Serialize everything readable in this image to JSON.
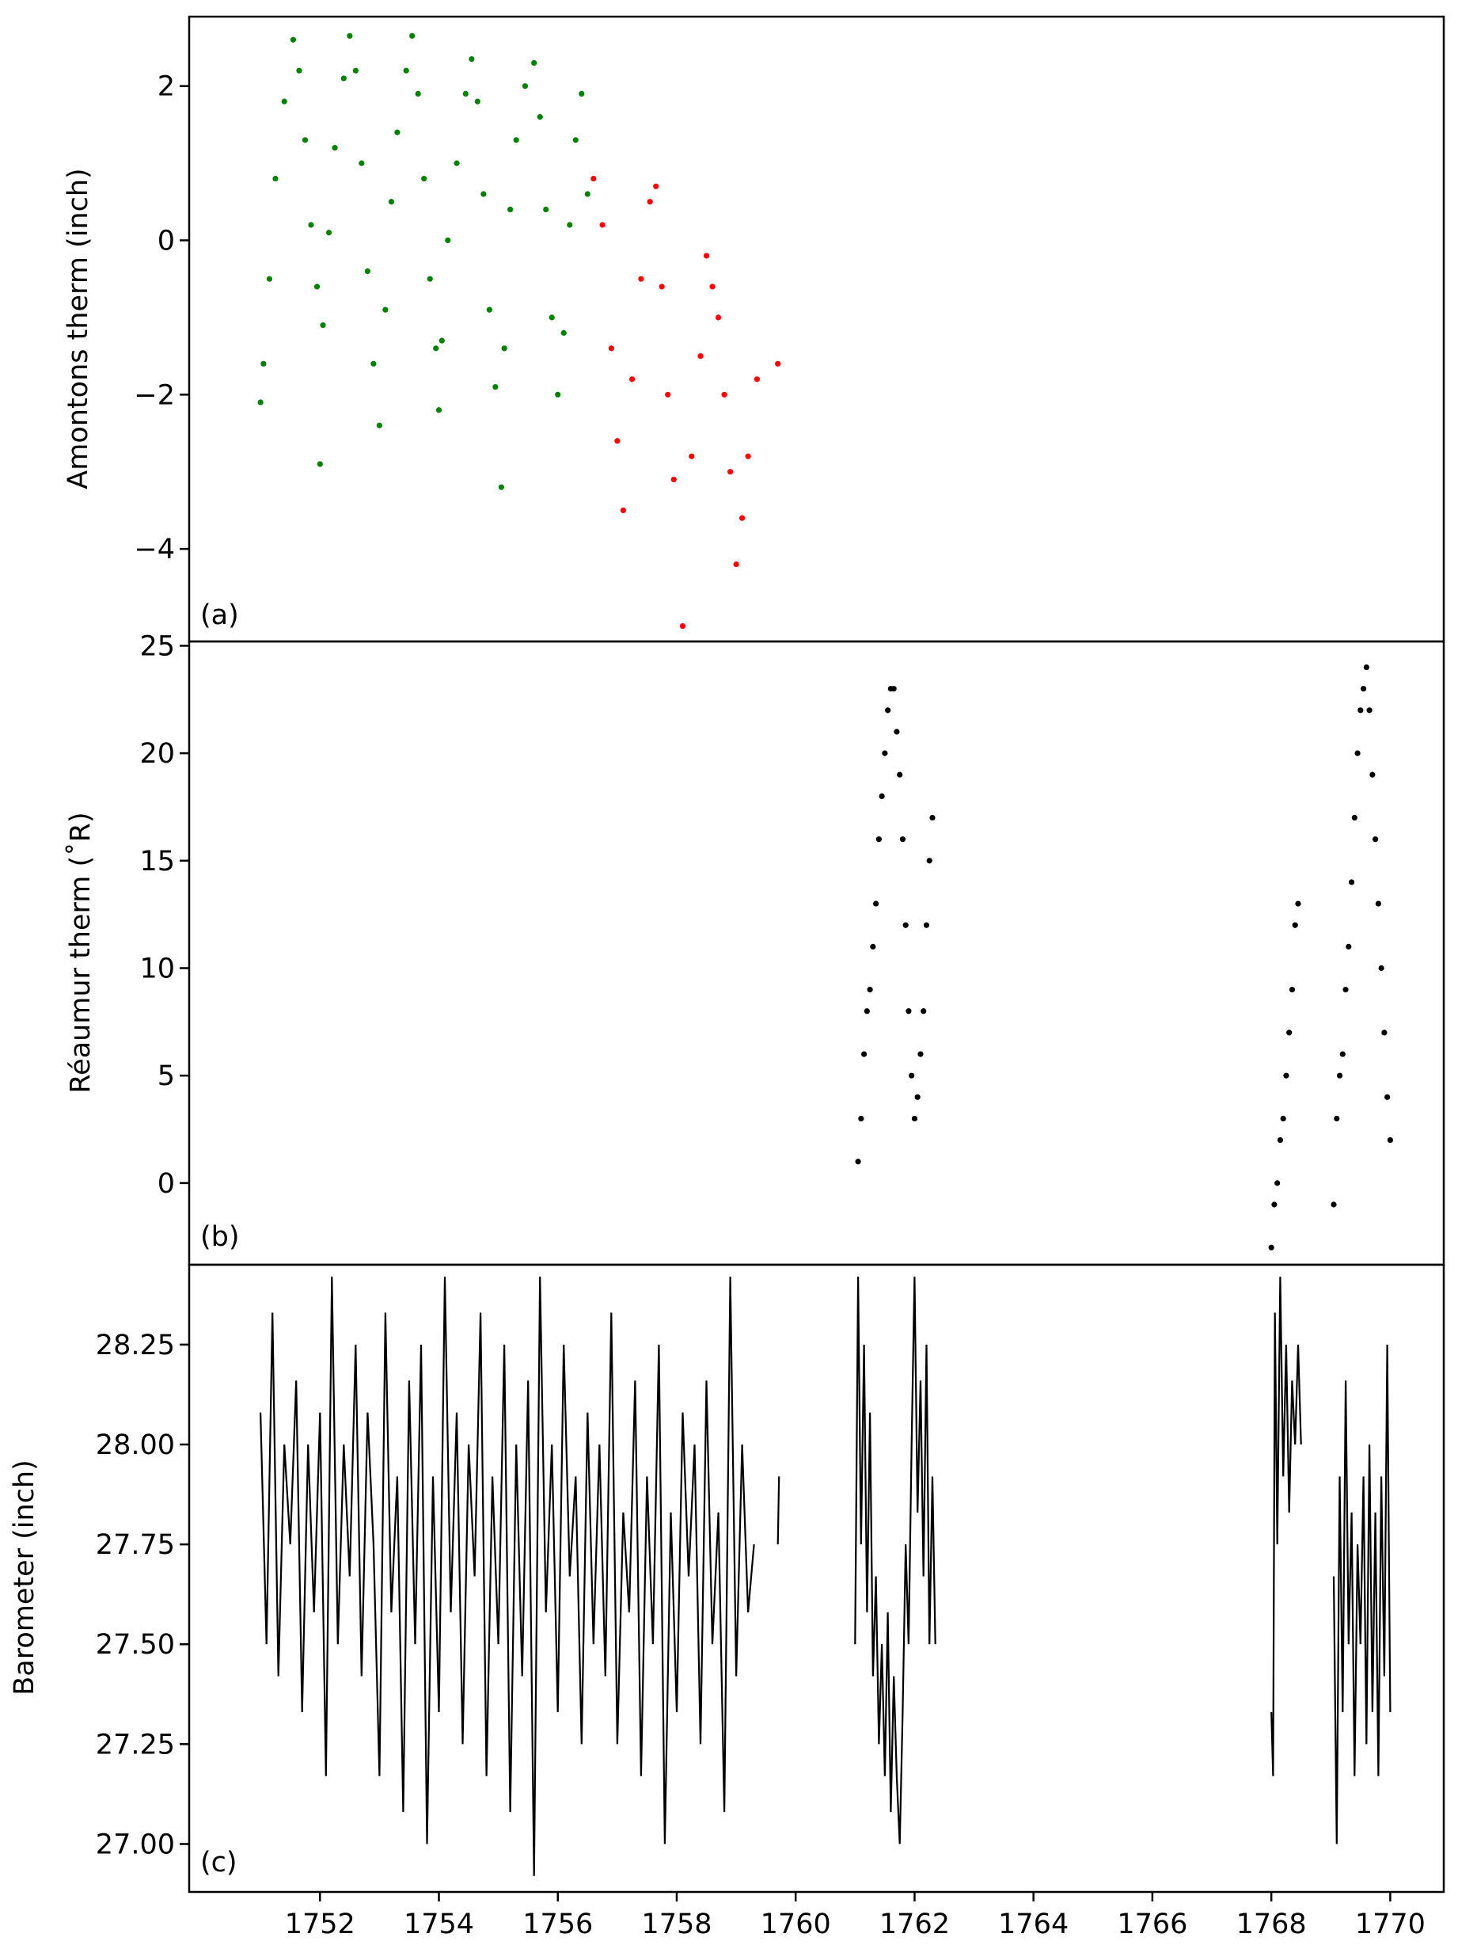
{
  "chart_data": [
    {
      "type": "scatter",
      "panel_label": "(a)",
      "ylabel": "Amontons therm (inch)",
      "ylim": [
        -5.2,
        2.9
      ],
      "yticks": [
        -4,
        -2,
        0,
        2
      ],
      "ytick_labels": [
        "−4",
        "−2",
        "0",
        "2"
      ],
      "colors": {
        "early": "#008000",
        "late": "#ff0000"
      },
      "series": [
        {
          "color_key": "early",
          "x": [
            1751.0,
            1751.05,
            1751.15,
            1751.25,
            1751.4,
            1751.55,
            1751.65,
            1751.75,
            1751.85,
            1751.95,
            1752.0,
            1752.05,
            1752.15,
            1752.25,
            1752.4,
            1752.5,
            1752.6,
            1752.7,
            1752.8,
            1752.9,
            1753.0,
            1753.1,
            1753.2,
            1753.3,
            1753.45,
            1753.55,
            1753.65,
            1753.75,
            1753.85,
            1753.95,
            1754.0,
            1754.05,
            1754.15,
            1754.3,
            1754.45,
            1754.55,
            1754.65,
            1754.75,
            1754.85,
            1754.95,
            1755.05,
            1755.1,
            1755.2,
            1755.3,
            1755.45,
            1755.6,
            1755.7,
            1755.8,
            1755.9,
            1756.0,
            1756.1,
            1756.2,
            1756.3,
            1756.4,
            1756.5
          ],
          "y": [
            -2.1,
            -1.6,
            -0.5,
            0.8,
            1.8,
            2.6,
            2.2,
            1.3,
            0.2,
            -0.6,
            -2.9,
            -1.1,
            0.1,
            1.2,
            2.1,
            2.65,
            2.2,
            1.0,
            -0.4,
            -1.6,
            -2.4,
            -0.9,
            0.5,
            1.4,
            2.2,
            2.65,
            1.9,
            0.8,
            -0.5,
            -1.4,
            -2.2,
            -1.3,
            0.0,
            1.0,
            1.9,
            2.35,
            1.8,
            0.6,
            -0.9,
            -1.9,
            -3.2,
            -1.4,
            0.4,
            1.3,
            2.0,
            2.3,
            1.6,
            0.4,
            -1.0,
            -2.0,
            -1.2,
            0.2,
            1.3,
            1.9,
            0.6
          ]
        },
        {
          "color_key": "late",
          "x": [
            1756.6,
            1756.75,
            1756.9,
            1757.0,
            1757.1,
            1757.25,
            1757.4,
            1757.55,
            1757.65,
            1757.75,
            1757.85,
            1757.95,
            1758.1,
            1758.25,
            1758.4,
            1758.5,
            1758.6,
            1758.7,
            1758.8,
            1758.9,
            1759.0,
            1759.1,
            1759.2,
            1759.35,
            1759.7
          ],
          "y": [
            0.8,
            0.2,
            -1.4,
            -2.6,
            -3.5,
            -1.8,
            -0.5,
            0.5,
            0.7,
            -0.6,
            -2.0,
            -3.1,
            -5.0,
            -2.8,
            -1.5,
            -0.2,
            -0.6,
            -1.0,
            -2.0,
            -3.0,
            -4.2,
            -3.6,
            -2.8,
            -1.8,
            -1.6
          ]
        }
      ]
    },
    {
      "type": "scatter",
      "panel_label": "(b)",
      "ylabel": "Réaumur therm (˚R)",
      "ylim": [
        -3.8,
        25.2
      ],
      "yticks": [
        0,
        5,
        10,
        15,
        20,
        25
      ],
      "ytick_labels": [
        "0",
        "5",
        "10",
        "15",
        "20",
        "25"
      ],
      "color": "#000000",
      "series": [
        {
          "x": [
            1761.05,
            1761.1,
            1761.15,
            1761.2,
            1761.25,
            1761.3,
            1761.35,
            1761.4,
            1761.45,
            1761.5,
            1761.55,
            1761.6,
            1761.65,
            1761.7,
            1761.75,
            1761.8,
            1761.85,
            1761.9,
            1761.95,
            1762.0,
            1762.05,
            1762.1,
            1762.15,
            1762.2,
            1762.25,
            1762.3
          ],
          "y": [
            1,
            3,
            6,
            8,
            9,
            11,
            13,
            16,
            18,
            20,
            22,
            23,
            23,
            21,
            19,
            16,
            12,
            8,
            5,
            3,
            4,
            6,
            8,
            12,
            15,
            17
          ]
        },
        {
          "x": [
            1768.0,
            1768.05,
            1768.1,
            1768.15,
            1768.2,
            1768.25,
            1768.3,
            1768.35,
            1768.4,
            1768.45,
            1769.05,
            1769.1,
            1769.15,
            1769.2,
            1769.25,
            1769.3,
            1769.35,
            1769.4,
            1769.45,
            1769.5,
            1769.55,
            1769.6,
            1769.65,
            1769.7,
            1769.75,
            1769.8,
            1769.85,
            1769.9,
            1769.95,
            1770.0
          ],
          "y": [
            -3,
            -1,
            0,
            2,
            3,
            5,
            7,
            9,
            12,
            13,
            -1,
            3,
            5,
            6,
            9,
            11,
            14,
            17,
            20,
            22,
            23,
            24,
            22,
            19,
            16,
            13,
            10,
            7,
            4,
            2
          ]
        }
      ]
    },
    {
      "type": "line",
      "panel_label": "(c)",
      "ylabel": "Barometer (inch)",
      "ylim": [
        26.88,
        28.45
      ],
      "yticks": [
        27.0,
        27.25,
        27.5,
        27.75,
        28.0,
        28.25
      ],
      "ytick_labels": [
        "27.00",
        "27.25",
        "27.50",
        "27.75",
        "28.00",
        "28.25"
      ],
      "color": "#000000",
      "segments": [
        {
          "x": [
            1751.0,
            1751.1,
            1751.2,
            1751.3,
            1751.4,
            1751.5,
            1751.6,
            1751.7,
            1751.8,
            1751.9,
            1752.0,
            1752.1,
            1752.2,
            1752.3,
            1752.4,
            1752.5,
            1752.6,
            1752.7,
            1752.8,
            1752.9,
            1753.0,
            1753.1,
            1753.2,
            1753.3,
            1753.4,
            1753.5,
            1753.6,
            1753.7,
            1753.8,
            1753.9,
            1754.0,
            1754.1,
            1754.2,
            1754.3,
            1754.4,
            1754.5,
            1754.6,
            1754.7,
            1754.8,
            1754.9,
            1755.0,
            1755.1,
            1755.2,
            1755.3,
            1755.4,
            1755.5,
            1755.6,
            1755.7,
            1755.8,
            1755.9,
            1756.0,
            1756.1,
            1756.2,
            1756.3,
            1756.4,
            1756.5,
            1756.6,
            1756.7,
            1756.8,
            1756.9,
            1757.0,
            1757.1,
            1757.2,
            1757.3,
            1757.4,
            1757.5,
            1757.6,
            1757.7,
            1757.8,
            1757.9,
            1758.0,
            1758.1,
            1758.2,
            1758.3,
            1758.4,
            1758.5,
            1758.6,
            1758.7,
            1758.8,
            1758.9,
            1759.0,
            1759.1,
            1759.2,
            1759.3
          ],
          "y": [
            28.08,
            27.5,
            28.33,
            27.42,
            28.0,
            27.75,
            28.16,
            27.33,
            28.0,
            27.58,
            28.08,
            27.17,
            28.42,
            27.5,
            28.0,
            27.67,
            28.25,
            27.42,
            28.08,
            27.75,
            27.17,
            28.33,
            27.58,
            27.92,
            27.08,
            28.16,
            27.5,
            28.25,
            27.0,
            27.92,
            27.33,
            28.42,
            27.58,
            28.08,
            27.25,
            28.0,
            27.67,
            28.33,
            27.17,
            27.92,
            27.5,
            28.25,
            27.08,
            28.0,
            27.42,
            28.16,
            26.92,
            28.42,
            27.58,
            28.0,
            27.33,
            28.25,
            27.67,
            27.92,
            27.25,
            28.08,
            27.5,
            28.0,
            27.42,
            28.33,
            27.25,
            27.83,
            27.58,
            28.16,
            27.17,
            27.92,
            27.5,
            28.25,
            27.0,
            27.83,
            27.33,
            28.08,
            27.67,
            28.0,
            27.25,
            28.16,
            27.5,
            27.83,
            27.08,
            28.42,
            27.42,
            28.0,
            27.58,
            27.75
          ]
        },
        {
          "x": [
            1759.7,
            1759.72
          ],
          "y": [
            27.75,
            27.92
          ]
        },
        {
          "x": [
            1761.0,
            1761.05,
            1761.1,
            1761.15,
            1761.2,
            1761.25,
            1761.3,
            1761.35,
            1761.4,
            1761.45,
            1761.5,
            1761.55,
            1761.6,
            1761.65,
            1761.7,
            1761.75,
            1761.8,
            1761.85,
            1761.9,
            1761.95,
            1762.0,
            1762.05,
            1762.1,
            1762.15,
            1762.2,
            1762.25,
            1762.3,
            1762.35
          ],
          "y": [
            27.5,
            28.42,
            27.75,
            28.25,
            27.58,
            28.08,
            27.42,
            27.67,
            27.25,
            27.5,
            27.17,
            27.58,
            27.08,
            27.42,
            27.17,
            27.0,
            27.33,
            27.75,
            27.5,
            28.0,
            28.42,
            27.83,
            28.16,
            27.67,
            28.25,
            27.5,
            27.92,
            27.5
          ]
        },
        {
          "x": [
            1768.0,
            1768.03,
            1768.06,
            1768.1,
            1768.15,
            1768.2,
            1768.25,
            1768.3,
            1768.35,
            1768.4,
            1768.45,
            1768.5
          ],
          "y": [
            27.33,
            27.17,
            28.33,
            27.75,
            28.42,
            27.92,
            28.25,
            27.83,
            28.16,
            28.0,
            28.25,
            28.0
          ]
        },
        {
          "x": [
            1769.05,
            1769.1,
            1769.15,
            1769.2,
            1769.25,
            1769.3,
            1769.35,
            1769.4,
            1769.45,
            1769.5,
            1769.55,
            1769.6,
            1769.65,
            1769.7,
            1769.75,
            1769.8,
            1769.85,
            1769.9,
            1769.95,
            1770.0
          ],
          "y": [
            27.67,
            27.0,
            27.92,
            27.33,
            28.16,
            27.5,
            27.83,
            27.17,
            27.75,
            27.5,
            27.92,
            27.25,
            28.0,
            27.33,
            27.83,
            27.17,
            27.92,
            27.42,
            28.25,
            27.33
          ]
        }
      ]
    }
  ],
  "x_axis": {
    "xlim": [
      1749.8,
      1770.9
    ],
    "ticks": [
      1752,
      1754,
      1756,
      1758,
      1760,
      1762,
      1764,
      1766,
      1768,
      1770
    ],
    "tick_labels": [
      "1752",
      "1754",
      "1756",
      "1758",
      "1760",
      "1762",
      "1764",
      "1766",
      "1768",
      "1770"
    ]
  }
}
